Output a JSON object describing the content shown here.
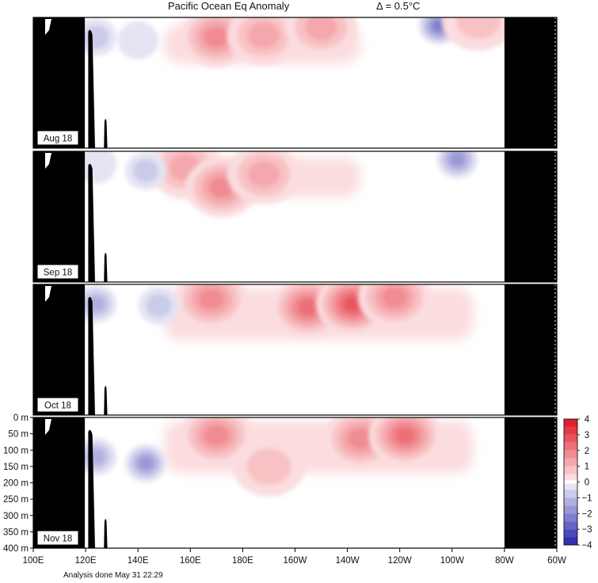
{
  "header": {
    "title": "Pacific Ocean Eq Anomaly",
    "interval": "Δ = 0.5°C"
  },
  "footer": {
    "analysis_note": "Analysis done May 31 22:29"
  },
  "chart_data": {
    "type": "heatmap",
    "title": "Pacific Ocean Eq Anomaly",
    "subtitle": "Δ = 0.5°C",
    "x_ticks": [
      "100E",
      "120E",
      "140E",
      "160E",
      "180E",
      "160W",
      "140W",
      "120W",
      "100W",
      "80W",
      "60W"
    ],
    "x_range_deg_east": [
      100,
      300
    ],
    "y_ticks": [
      "0 m",
      "50 m",
      "100 m",
      "150 m",
      "200 m",
      "250 m",
      "300 m",
      "350 m",
      "400 m"
    ],
    "y_range_m": [
      0,
      400
    ],
    "y_inverted": true,
    "panels": [
      "Aug 18",
      "Sep 18",
      "Oct 18",
      "Nov 18"
    ],
    "colorbar": {
      "labels": [
        "4",
        "3",
        "2",
        "1",
        "0",
        "−1",
        "−2",
        "−3",
        "−4"
      ],
      "step_deg_c": 0.5,
      "colors_positive": [
        "#fbdddf",
        "#f8c2c5",
        "#f4a7ac",
        "#f08b92",
        "#ec7078",
        "#e8555f",
        "#e43a46",
        "#e0202d"
      ],
      "colors_negative": [
        "#e4e4f3",
        "#cacaea",
        "#b0b0e0",
        "#9797d6",
        "#7d7dcc",
        "#6464c2",
        "#4b4bb8",
        "#3232ae"
      ],
      "zero_color": "#ffffff"
    },
    "land_color": "#000000",
    "anomaly_features": [
      {
        "panel": "Aug 18",
        "lon": 170,
        "depth": 60,
        "sign": "warm",
        "max_level": 4
      },
      {
        "panel": "Aug 18",
        "lon": 188,
        "depth": 55,
        "sign": "warm",
        "max_level": 3
      },
      {
        "panel": "Aug 18",
        "lon": 210,
        "depth": 30,
        "sign": "warm",
        "max_level": 3
      },
      {
        "panel": "Aug 18",
        "lon": 255,
        "depth": 25,
        "sign": "cold",
        "max_level": 5
      },
      {
        "panel": "Aug 18",
        "lon": 270,
        "depth": 10,
        "sign": "warm",
        "max_level": 2
      },
      {
        "panel": "Aug 18",
        "lon": 140,
        "depth": 70,
        "sign": "cold",
        "max_level": 1
      },
      {
        "panel": "Aug 18",
        "lon": 124,
        "depth": 60,
        "sign": "cold",
        "max_level": 2
      },
      {
        "panel": "Sep 18",
        "lon": 158,
        "depth": 50,
        "sign": "warm",
        "max_level": 3
      },
      {
        "panel": "Sep 18",
        "lon": 172,
        "depth": 110,
        "sign": "warm",
        "max_level": 4
      },
      {
        "panel": "Sep 18",
        "lon": 188,
        "depth": 70,
        "sign": "warm",
        "max_level": 3
      },
      {
        "panel": "Sep 18",
        "lon": 143,
        "depth": 60,
        "sign": "cold",
        "max_level": 2
      },
      {
        "panel": "Sep 18",
        "lon": 262,
        "depth": 25,
        "sign": "cold",
        "max_level": 4
      },
      {
        "panel": "Sep 18",
        "lon": 124,
        "depth": 40,
        "sign": "cold",
        "max_level": 1
      },
      {
        "panel": "Oct 18",
        "lon": 168,
        "depth": 45,
        "sign": "warm",
        "max_level": 4
      },
      {
        "panel": "Oct 18",
        "lon": 205,
        "depth": 70,
        "sign": "warm",
        "max_level": 5
      },
      {
        "panel": "Oct 18",
        "lon": 222,
        "depth": 60,
        "sign": "warm",
        "max_level": 6
      },
      {
        "panel": "Oct 18",
        "lon": 238,
        "depth": 40,
        "sign": "warm",
        "max_level": 4
      },
      {
        "panel": "Oct 18",
        "lon": 124,
        "depth": 60,
        "sign": "cold",
        "max_level": 3
      },
      {
        "panel": "Oct 18",
        "lon": 148,
        "depth": 65,
        "sign": "cold",
        "max_level": 2
      },
      {
        "panel": "Nov 18",
        "lon": 170,
        "depth": 55,
        "sign": "warm",
        "max_level": 4
      },
      {
        "panel": "Nov 18",
        "lon": 225,
        "depth": 65,
        "sign": "warm",
        "max_level": 4
      },
      {
        "panel": "Nov 18",
        "lon": 242,
        "depth": 55,
        "sign": "warm",
        "max_level": 5
      },
      {
        "panel": "Nov 18",
        "lon": 190,
        "depth": 150,
        "sign": "warm",
        "max_level": 2
      },
      {
        "panel": "Nov 18",
        "lon": 124,
        "depth": 120,
        "sign": "cold",
        "max_level": 3
      },
      {
        "panel": "Nov 18",
        "lon": 143,
        "depth": 140,
        "sign": "cold",
        "max_level": 4
      }
    ]
  }
}
